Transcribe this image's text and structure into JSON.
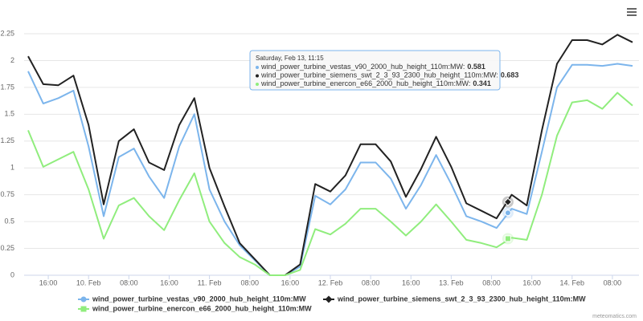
{
  "chart_data": {
    "type": "line",
    "x": [
      "Feb 9, 12:00",
      "Feb 9, 15:00",
      "Feb 9, 18:00",
      "Feb 9, 21:00",
      "Feb 10, 00:00",
      "Feb 10, 03:00",
      "Feb 10, 06:00",
      "Feb 10, 09:00",
      "Feb 10, 12:00",
      "Feb 10, 15:00",
      "Feb 10, 18:00",
      "Feb 10, 21:00",
      "Feb 11, 00:00",
      "Feb 11, 03:00",
      "Feb 11, 06:00",
      "Feb 11, 09:00",
      "Feb 11, 12:00",
      "Feb 11, 15:00",
      "Feb 11, 18:00",
      "Feb 11, 21:00",
      "Feb 12, 00:00",
      "Feb 12, 03:00",
      "Feb 12, 06:00",
      "Feb 12, 09:00",
      "Feb 12, 12:00",
      "Feb 12, 15:00",
      "Feb 12, 18:00",
      "Feb 12, 21:00",
      "Feb 13, 00:00",
      "Feb 13, 03:00",
      "Feb 13, 06:00",
      "Feb 13, 09:00",
      "Feb 13, 12:00",
      "Feb 13, 15:00",
      "Feb 13, 18:00",
      "Feb 13, 21:00",
      "Feb 14, 00:00",
      "Feb 14, 03:00",
      "Feb 14, 06:00",
      "Feb 14, 09:00",
      "Feb 14, 12:00"
    ],
    "series": [
      {
        "name": "wind_power_turbine_vestas_v90_2000_hub_height_110m:MW",
        "color": "#7cb5ec",
        "marker": "circle",
        "values": [
          1.9,
          1.6,
          1.65,
          1.72,
          1.2,
          0.55,
          1.1,
          1.18,
          0.92,
          0.72,
          1.2,
          1.5,
          0.8,
          0.5,
          0.28,
          0.14,
          0.0,
          0.0,
          0.08,
          0.74,
          0.66,
          0.8,
          1.05,
          1.05,
          0.9,
          0.62,
          0.84,
          1.12,
          0.85,
          0.55,
          0.5,
          0.44,
          0.62,
          0.57,
          1.15,
          1.75,
          1.96,
          1.96,
          1.95,
          1.97,
          1.95
        ]
      },
      {
        "name": "wind_power_turbine_siemens_swt_2_3_93_2300_hub_height_110m:MW",
        "color": "#222222",
        "marker": "diamond",
        "values": [
          2.04,
          1.78,
          1.77,
          1.86,
          1.4,
          0.66,
          1.25,
          1.36,
          1.05,
          0.98,
          1.4,
          1.65,
          1.0,
          0.64,
          0.3,
          0.15,
          0.0,
          0.0,
          0.1,
          0.85,
          0.78,
          0.93,
          1.22,
          1.22,
          1.06,
          0.73,
          0.99,
          1.29,
          1.01,
          0.67,
          0.6,
          0.53,
          0.75,
          0.65,
          1.35,
          1.97,
          2.19,
          2.19,
          2.15,
          2.24,
          2.17
        ]
      },
      {
        "name": "wind_power_turbine_enercon_e66_2000_hub_height_110m:MW",
        "color": "#90ed7d",
        "marker": "square",
        "values": [
          1.35,
          1.01,
          1.08,
          1.15,
          0.8,
          0.34,
          0.65,
          0.72,
          0.55,
          0.42,
          0.7,
          0.95,
          0.5,
          0.3,
          0.17,
          0.1,
          0.0,
          0.0,
          0.05,
          0.43,
          0.38,
          0.48,
          0.62,
          0.62,
          0.5,
          0.37,
          0.5,
          0.66,
          0.5,
          0.33,
          0.3,
          0.26,
          0.35,
          0.33,
          0.75,
          1.3,
          1.61,
          1.63,
          1.55,
          1.7,
          1.58
        ]
      }
    ],
    "ylim": [
      0,
      2.25
    ],
    "yticks": [
      0,
      0.25,
      0.5,
      0.75,
      1,
      1.25,
      1.5,
      1.75,
      2,
      2.25
    ],
    "xticks": [
      {
        "value": "Feb 9, 16:00",
        "label": "16:00"
      },
      {
        "value": "Feb 10, 00:00",
        "label": "10. Feb"
      },
      {
        "value": "Feb 10, 08:00",
        "label": "08:00"
      },
      {
        "value": "Feb 10, 16:00",
        "label": "16:00"
      },
      {
        "value": "Feb 11, 00:00",
        "label": "11. Feb"
      },
      {
        "value": "Feb 11, 08:00",
        "label": "08:00"
      },
      {
        "value": "Feb 11, 16:00",
        "label": "16:00"
      },
      {
        "value": "Feb 12, 00:00",
        "label": "12. Feb"
      },
      {
        "value": "Feb 12, 08:00",
        "label": "08:00"
      },
      {
        "value": "Feb 12, 16:00",
        "label": "16:00"
      },
      {
        "value": "Feb 13, 00:00",
        "label": "13. Feb"
      },
      {
        "value": "Feb 13, 08:00",
        "label": "08:00"
      },
      {
        "value": "Feb 13, 16:00",
        "label": "16:00"
      },
      {
        "value": "Feb 14, 00:00",
        "label": "14. Feb"
      },
      {
        "value": "Feb 14, 08:00",
        "label": "08:00"
      }
    ],
    "grid": true,
    "tooltip": {
      "title": "Saturday, Feb 13, 11:15",
      "x": "Feb 13, 11:15",
      "items": [
        {
          "label": "wind_power_turbine_vestas_v90_2000_hub_height_110m:MW:",
          "value": 0.581
        },
        {
          "label": "wind_power_turbine_siemens_swt_2_3_93_2300_hub_height_110m:MW:",
          "value": 0.683
        },
        {
          "label": "wind_power_turbine_enercon_e66_2000_hub_height_110m:MW:",
          "value": 0.341
        }
      ]
    },
    "credits": "meteomatics.com"
  }
}
